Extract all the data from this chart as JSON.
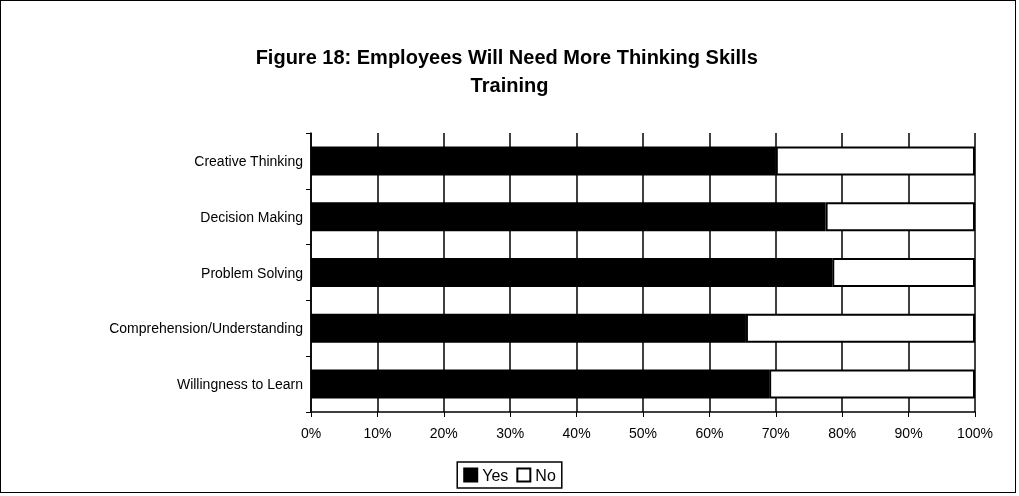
{
  "chart_data": {
    "type": "bar",
    "orientation": "horizontal",
    "stacked": true,
    "title": "Figure 18: Employees Will Need More Thinking Skills Training",
    "categories": [
      "Creative Thinking",
      "Decision Making",
      "Problem Solving",
      "Comprehension/Understanding",
      "Willingness to Learn"
    ],
    "series": [
      {
        "name": "Yes",
        "color": "#000000",
        "values": [
          70,
          77.5,
          78.5,
          65.5,
          69
        ]
      },
      {
        "name": "No",
        "color": "#ffffff",
        "values": [
          30,
          22.5,
          21.5,
          34.5,
          31
        ]
      }
    ],
    "xlim": [
      0,
      100
    ],
    "xticks": [
      {
        "value": 0,
        "label": "0%"
      },
      {
        "value": 10,
        "label": "10%"
      },
      {
        "value": 20,
        "label": "20%"
      },
      {
        "value": 30,
        "label": "30%"
      },
      {
        "value": 40,
        "label": "40%"
      },
      {
        "value": 50,
        "label": "50%"
      },
      {
        "value": 60,
        "label": "60%"
      },
      {
        "value": 70,
        "label": "70%"
      },
      {
        "value": 80,
        "label": "80%"
      },
      {
        "value": 90,
        "label": "90%"
      },
      {
        "value": 100,
        "label": "100%"
      }
    ],
    "grid": "x",
    "legend": "bottom"
  }
}
